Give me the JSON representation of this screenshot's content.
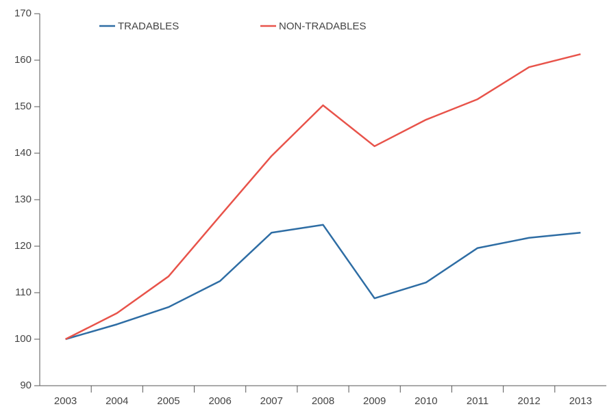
{
  "chart_data": {
    "type": "line",
    "categories": [
      "2003",
      "2004",
      "2005",
      "2006",
      "2007",
      "2008",
      "2009",
      "2010",
      "2011",
      "2012",
      "2013"
    ],
    "series": [
      {
        "name": "TRADABLES",
        "color": "#2e6da4",
        "values": [
          100,
          103.2,
          106.9,
          112.5,
          122.9,
          124.6,
          108.8,
          112.2,
          119.6,
          121.8,
          122.9
        ]
      },
      {
        "name": "NON-TRADABLES",
        "color": "#e8534a",
        "values": [
          100,
          105.6,
          113.5,
          126.5,
          139.4,
          150.3,
          141.5,
          147.2,
          151.6,
          158.5,
          161.3
        ]
      }
    ],
    "ylim": [
      90,
      170
    ],
    "yticks": [
      90,
      100,
      110,
      120,
      130,
      140,
      150,
      160,
      170
    ],
    "grid": false
  }
}
